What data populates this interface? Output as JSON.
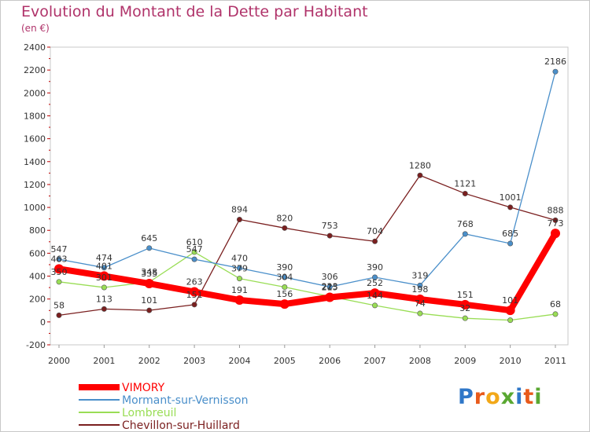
{
  "header": {
    "title": "Evolution du Montant de la Dette par Habitant",
    "unit": "(en €)"
  },
  "logo": {
    "text": "Proxiti",
    "letters": [
      "P",
      "r",
      "o",
      "x",
      "i",
      "t",
      "i"
    ]
  },
  "chart_data": {
    "type": "line",
    "title": "Evolution du Montant de la Dette par Habitant",
    "ylabel": "(en €)",
    "xlabel": "",
    "categories": [
      "2000",
      "2001",
      "2002",
      "2003",
      "2004",
      "2005",
      "2006",
      "2007",
      "2008",
      "2009",
      "2010",
      "2011"
    ],
    "ylim": [
      -200,
      2400
    ],
    "yticks": [
      -200,
      0,
      200,
      400,
      600,
      800,
      1000,
      1200,
      1400,
      1600,
      1800,
      2000,
      2200,
      2400
    ],
    "grid": false,
    "legend_position": "bottom-left",
    "series": [
      {
        "name": "VIMORY",
        "color": "#ff0000",
        "values": [
          463,
          401,
          335,
          263,
          191,
          156,
          215,
          252,
          198,
          151,
          101,
          773
        ],
        "labels": [
          "463",
          "401",
          "335",
          "263",
          "191",
          "156",
          "215",
          "252",
          "198",
          "151",
          "101",
          "773"
        ]
      },
      {
        "name": "Mormant-sur-Vernisson",
        "color": "#4a8fca",
        "values": [
          547,
          474,
          645,
          547,
          470,
          390,
          306,
          390,
          319,
          768,
          685,
          2186
        ],
        "labels": [
          "547",
          "474",
          "645",
          "547",
          "470",
          "390",
          "306",
          "390",
          "319",
          "768",
          "685",
          "2186"
        ]
      },
      {
        "name": "Lombreuil",
        "color": "#99dd55",
        "values": [
          350,
          301,
          348,
          610,
          379,
          304,
          223,
          144,
          74,
          32,
          15,
          68
        ],
        "labels": [
          "350",
          "301",
          "348",
          "610",
          "379",
          "304",
          "223",
          "144",
          "74",
          "32",
          "",
          "68"
        ]
      },
      {
        "name": "Chevillon-sur-Huillard",
        "color": "#7a1f1f",
        "values": [
          58,
          113,
          101,
          151,
          894,
          820,
          753,
          704,
          1280,
          1121,
          1001,
          888
        ],
        "labels": [
          "58",
          "113",
          "101",
          "151",
          "894",
          "820",
          "753",
          "704",
          "1280",
          "1121",
          "1001",
          "888"
        ]
      }
    ]
  }
}
